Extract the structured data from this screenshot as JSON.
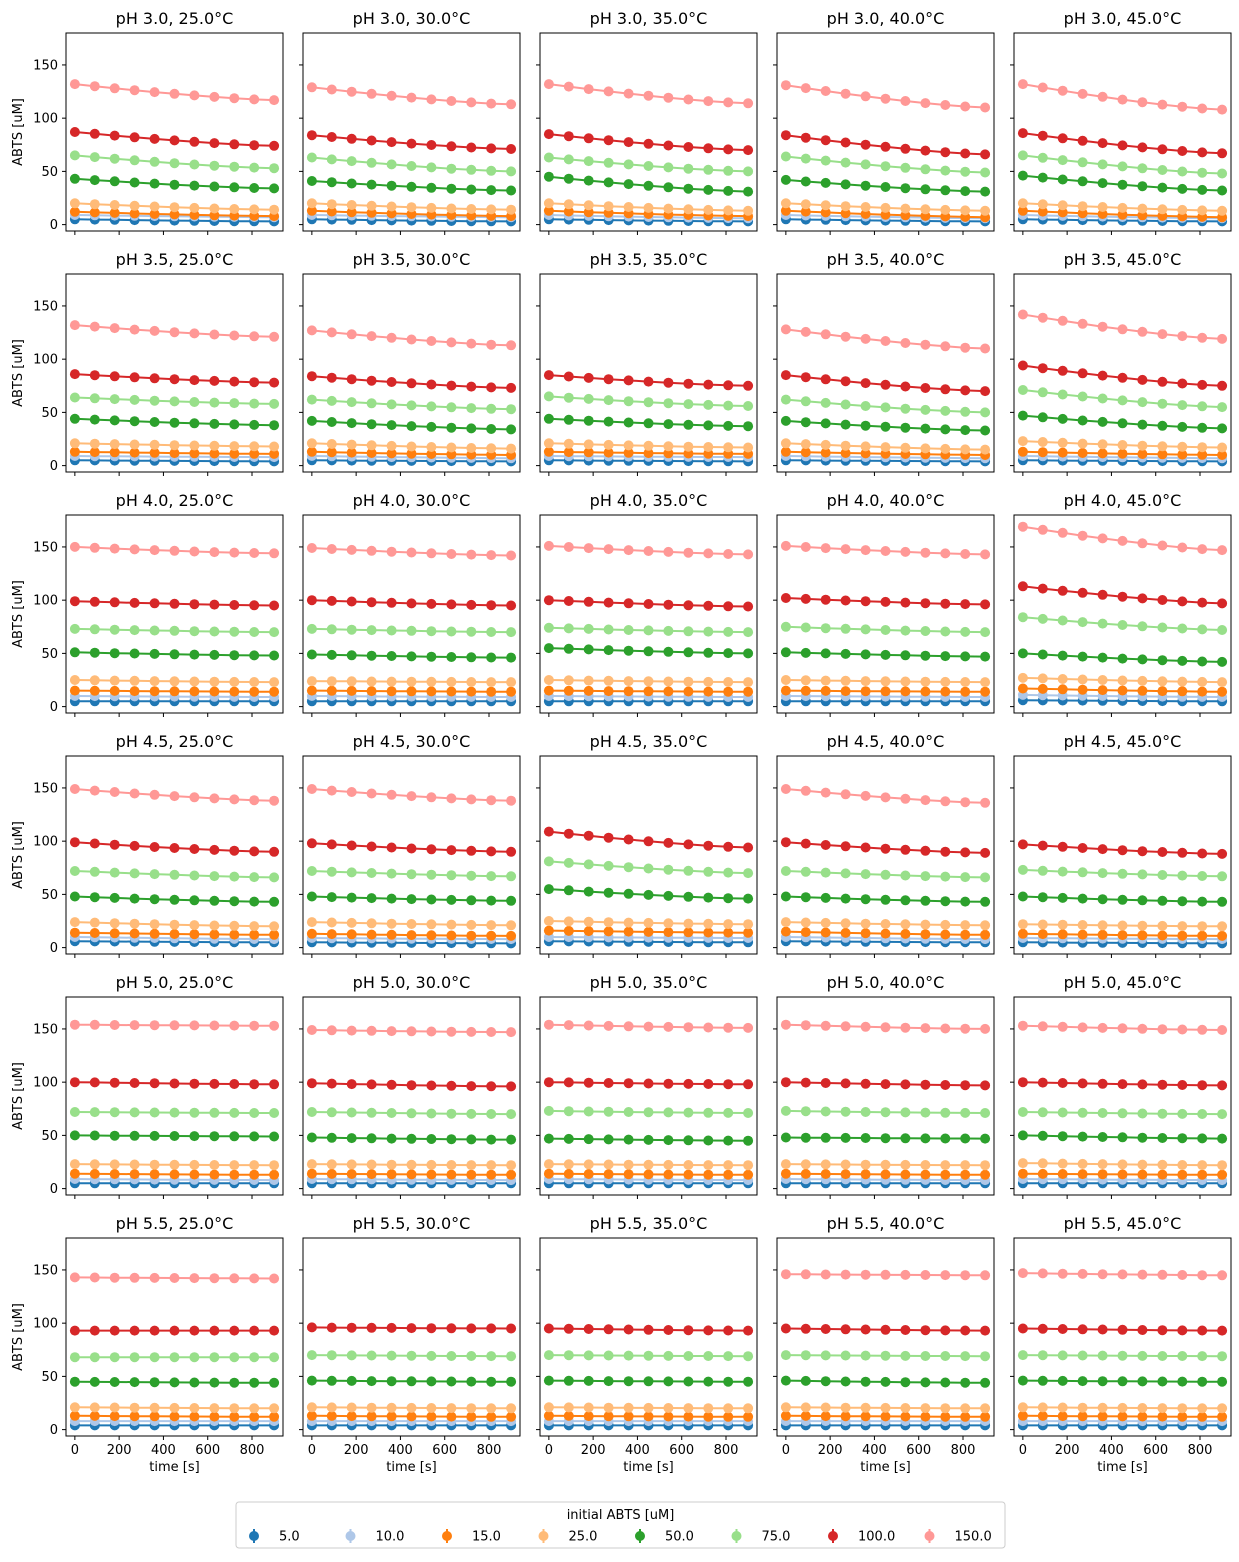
{
  "chart_data": {
    "type": "line",
    "layout": {
      "rows": 6,
      "cols": 5,
      "sharex": true,
      "sharey": true
    },
    "xlabel": "time [s]",
    "ylabel": "ABTS [uM]",
    "xlim": [
      -40,
      940
    ],
    "ylim": [
      -6,
      180
    ],
    "xticks": [
      0,
      200,
      400,
      600,
      800
    ],
    "yticks": [
      0,
      50,
      100,
      150
    ],
    "x": [
      0,
      90,
      180,
      270,
      360,
      450,
      540,
      630,
      720,
      810,
      900
    ],
    "legend": {
      "title": "initial ABTS [uM]",
      "placement": "bottom-center",
      "entries": [
        "5.0",
        "10.0",
        "15.0",
        "25.0",
        "50.0",
        "75.0",
        "100.0",
        "150.0"
      ]
    },
    "series_colors": [
      "#1f77b4",
      "#aec7e8",
      "#ff7f0e",
      "#ffbb78",
      "#2ca02c",
      "#98df8a",
      "#d62728",
      "#ff9896"
    ],
    "panels": [
      {
        "title": "pH 3.0, 25.0°C",
        "start": [
          5,
          9,
          12,
          20,
          43,
          65,
          87,
          132
        ],
        "end": [
          3,
          7,
          8,
          14,
          34,
          53,
          74,
          117
        ]
      },
      {
        "title": "pH 3.0, 30.0°C",
        "start": [
          5,
          9,
          13,
          20,
          41,
          63,
          84,
          129
        ],
        "end": [
          3,
          7,
          8,
          14,
          32,
          50,
          71,
          113
        ]
      },
      {
        "title": "pH 3.0, 35.0°C",
        "start": [
          5,
          9,
          13,
          20,
          45,
          63,
          85,
          132
        ],
        "end": [
          3,
          6,
          8,
          13,
          31,
          50,
          70,
          114
        ]
      },
      {
        "title": "pH 3.0, 40.0°C",
        "start": [
          5,
          9,
          13,
          20,
          42,
          64,
          84,
          131
        ],
        "end": [
          3,
          6,
          7,
          13,
          31,
          49,
          66,
          110
        ]
      },
      {
        "title": "pH 3.0, 45.0°C",
        "start": [
          5,
          9,
          13,
          20,
          46,
          65,
          86,
          132
        ],
        "end": [
          3,
          6,
          7,
          13,
          32,
          48,
          67,
          108
        ]
      },
      {
        "title": "pH 3.5, 25.0°C",
        "start": [
          5,
          9,
          13,
          21,
          44,
          64,
          86,
          132
        ],
        "end": [
          4,
          8,
          11,
          18,
          38,
          58,
          78,
          121
        ]
      },
      {
        "title": "pH 3.5, 30.0°C",
        "start": [
          5,
          9,
          13,
          21,
          42,
          62,
          84,
          127
        ],
        "end": [
          4,
          7,
          10,
          16,
          34,
          53,
          73,
          113
        ]
      },
      {
        "title": "pH 3.5, 35.0°C",
        "start": [
          5,
          9,
          13,
          21,
          44,
          65,
          85,
          null
        ],
        "end": [
          4,
          8,
          11,
          17,
          37,
          56,
          75,
          null
        ]
      },
      {
        "title": "pH 3.5, 40.0°C",
        "start": [
          5,
          9,
          13,
          21,
          42,
          62,
          85,
          128
        ],
        "end": [
          4,
          7,
          10,
          15,
          33,
          50,
          70,
          110
        ]
      },
      {
        "title": "pH 3.5, 45.0°C",
        "start": [
          5,
          9,
          13,
          23,
          47,
          71,
          94,
          142
        ],
        "end": [
          4,
          7,
          10,
          17,
          35,
          55,
          75,
          119
        ]
      },
      {
        "title": "pH 4.0, 25.0°C",
        "start": [
          5,
          10,
          15,
          25,
          51,
          73,
          99,
          150
        ],
        "end": [
          5,
          9,
          14,
          23,
          48,
          70,
          95,
          144
        ]
      },
      {
        "title": "pH 4.0, 30.0°C",
        "start": [
          5,
          10,
          15,
          24,
          49,
          73,
          100,
          149
        ],
        "end": [
          5,
          9,
          14,
          23,
          46,
          70,
          95,
          142
        ]
      },
      {
        "title": "pH 4.0, 35.0°C",
        "start": [
          5,
          10,
          15,
          25,
          55,
          74,
          100,
          151
        ],
        "end": [
          5,
          9,
          14,
          23,
          50,
          70,
          94,
          143
        ]
      },
      {
        "title": "pH 4.0, 40.0°C",
        "start": [
          5,
          10,
          15,
          25,
          51,
          75,
          102,
          151
        ],
        "end": [
          5,
          9,
          14,
          23,
          47,
          70,
          96,
          143
        ]
      },
      {
        "title": "pH 4.0, 45.0°C",
        "start": [
          6,
          11,
          17,
          27,
          50,
          84,
          113,
          169
        ],
        "end": [
          5,
          9,
          14,
          23,
          42,
          72,
          97,
          147
        ]
      },
      {
        "title": "pH 4.5, 25.0°C",
        "start": [
          6,
          10,
          14,
          24,
          48,
          72,
          99,
          149
        ],
        "end": [
          5,
          8,
          12,
          20,
          43,
          66,
          90,
          138
        ]
      },
      {
        "title": "pH 4.5, 30.0°C",
        "start": [
          5,
          9,
          13,
          24,
          48,
          72,
          98,
          149
        ],
        "end": [
          4,
          8,
          11,
          21,
          44,
          67,
          90,
          138
        ]
      },
      {
        "title": "pH 4.5, 35.0°C",
        "start": [
          6,
          10,
          16,
          25,
          55,
          81,
          109,
          null
        ],
        "end": [
          5,
          9,
          14,
          22,
          46,
          70,
          94,
          null
        ]
      },
      {
        "title": "pH 4.5, 40.0°C",
        "start": [
          6,
          10,
          15,
          24,
          48,
          72,
          99,
          149
        ],
        "end": [
          5,
          8,
          12,
          21,
          43,
          66,
          89,
          136
        ]
      },
      {
        "title": "pH 4.5, 45.0°C",
        "start": [
          5,
          9,
          13,
          22,
          48,
          73,
          97,
          null
        ],
        "end": [
          4,
          8,
          11,
          20,
          43,
          67,
          88,
          null
        ]
      },
      {
        "title": "pH 5.0, 25.0°C",
        "start": [
          5,
          9,
          14,
          23,
          50,
          72,
          100,
          154
        ],
        "end": [
          5,
          8,
          13,
          22,
          49,
          71,
          98,
          153
        ]
      },
      {
        "title": "pH 5.0, 30.0°C",
        "start": [
          5,
          9,
          14,
          23,
          48,
          72,
          99,
          149
        ],
        "end": [
          5,
          8,
          13,
          22,
          46,
          70,
          96,
          147
        ]
      },
      {
        "title": "pH 5.0, 35.0°C",
        "start": [
          5,
          9,
          14,
          23,
          47,
          73,
          100,
          154
        ],
        "end": [
          5,
          8,
          13,
          22,
          45,
          71,
          98,
          151
        ]
      },
      {
        "title": "pH 5.0, 40.0°C",
        "start": [
          5,
          9,
          14,
          23,
          48,
          73,
          100,
          154
        ],
        "end": [
          5,
          8,
          13,
          22,
          47,
          71,
          97,
          150
        ]
      },
      {
        "title": "pH 5.0, 45.0°C",
        "start": [
          5,
          9,
          14,
          24,
          50,
          72,
          100,
          153
        ],
        "end": [
          5,
          8,
          13,
          22,
          47,
          70,
          97,
          149
        ]
      },
      {
        "title": "pH 5.5, 25.0°C",
        "start": [
          4,
          8,
          13,
          21,
          45,
          68,
          93,
          143
        ],
        "end": [
          4,
          8,
          12,
          20,
          44,
          68,
          93,
          142
        ]
      },
      {
        "title": "pH 5.5, 30.0°C",
        "start": [
          4,
          8,
          13,
          21,
          46,
          70,
          96,
          null
        ],
        "end": [
          4,
          8,
          12,
          20,
          45,
          69,
          95,
          null
        ]
      },
      {
        "title": "pH 5.5, 35.0°C",
        "start": [
          4,
          8,
          13,
          21,
          46,
          70,
          95,
          null
        ],
        "end": [
          4,
          8,
          12,
          20,
          45,
          69,
          93,
          null
        ]
      },
      {
        "title": "pH 5.5, 40.0°C",
        "start": [
          4,
          8,
          13,
          21,
          46,
          70,
          95,
          146
        ],
        "end": [
          4,
          8,
          12,
          20,
          44,
          69,
          93,
          145
        ]
      },
      {
        "title": "pH 5.5, 45.0°C",
        "start": [
          4,
          8,
          13,
          21,
          46,
          70,
          95,
          147
        ],
        "end": [
          4,
          8,
          12,
          20,
          45,
          69,
          93,
          145
        ]
      }
    ]
  }
}
